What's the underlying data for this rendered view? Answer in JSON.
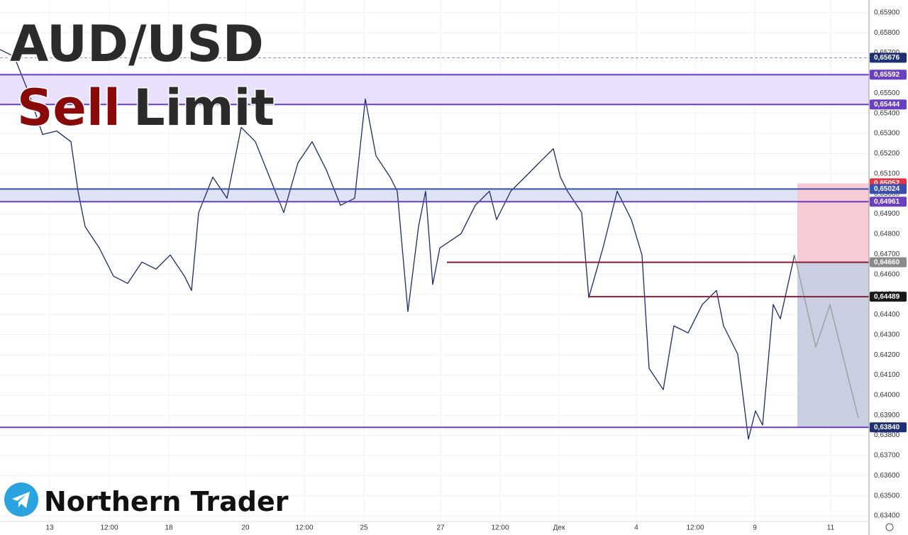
{
  "chart_data": {
    "type": "line",
    "title": "AUD/USD",
    "subtitle_parts": [
      "Sell",
      "Limit"
    ],
    "brand": "Northern Trader",
    "xlim": [
      0,
      122.5
    ],
    "ylim": [
      0.63372,
      0.65963
    ],
    "xticks": [
      {
        "value": 7,
        "label": "13"
      },
      {
        "value": 15.4,
        "label": "12:00"
      },
      {
        "value": 23.8,
        "label": "18"
      },
      {
        "value": 34.6,
        "label": "20"
      },
      {
        "value": 42.9,
        "label": "12:00"
      },
      {
        "value": 51.3,
        "label": "25"
      },
      {
        "value": 62.1,
        "label": "27"
      },
      {
        "value": 70.5,
        "label": "12:00"
      },
      {
        "value": 78.8,
        "label": "Дек"
      },
      {
        "value": 89.7,
        "label": "4"
      },
      {
        "value": 98,
        "label": "12:00"
      },
      {
        "value": 106.4,
        "label": "9"
      },
      {
        "value": 117.1,
        "label": "11"
      }
    ],
    "yticks": [
      {
        "value": 0.634,
        "label": "0,63400"
      },
      {
        "value": 0.635,
        "label": "0,63500"
      },
      {
        "value": 0.636,
        "label": "0,63600"
      },
      {
        "value": 0.637,
        "label": "0,63700"
      },
      {
        "value": 0.638,
        "label": "0,63800"
      },
      {
        "value": 0.639,
        "label": "0,63900"
      },
      {
        "value": 0.64,
        "label": "0,64000"
      },
      {
        "value": 0.641,
        "label": "0,64100"
      },
      {
        "value": 0.642,
        "label": "0,64200"
      },
      {
        "value": 0.643,
        "label": "0,64300"
      },
      {
        "value": 0.644,
        "label": "0,64400"
      },
      {
        "value": 0.645,
        "label": "0,64500"
      },
      {
        "value": 0.646,
        "label": "0,64600"
      },
      {
        "value": 0.647,
        "label": "0,64700"
      },
      {
        "value": 0.648,
        "label": "0,64800"
      },
      {
        "value": 0.649,
        "label": "0,64900"
      },
      {
        "value": 0.65,
        "label": "0,65000"
      },
      {
        "value": 0.651,
        "label": "0,65100"
      },
      {
        "value": 0.652,
        "label": "0,65200"
      },
      {
        "value": 0.653,
        "label": "0,65300"
      },
      {
        "value": 0.654,
        "label": "0,65400"
      },
      {
        "value": 0.655,
        "label": "0,65500"
      },
      {
        "value": 0.656,
        "label": "0,65600"
      },
      {
        "value": 0.657,
        "label": "0,65700"
      },
      {
        "value": 0.658,
        "label": "0,65800"
      },
      {
        "value": 0.659,
        "label": "0,65900"
      }
    ],
    "grid": true,
    "series": [
      {
        "color": "#1b2a6b",
        "x": [
          0,
          2,
          4,
          6,
          8,
          10,
          11,
          12,
          14,
          16,
          18,
          20,
          22,
          24,
          26,
          27,
          28,
          30,
          32,
          34,
          36,
          38,
          40,
          42,
          44,
          46,
          48,
          50,
          51.5,
          53,
          55,
          56,
          57.5,
          59,
          60,
          61,
          62,
          65,
          67,
          69,
          70,
          72,
          74,
          76,
          78,
          79,
          80,
          82,
          83,
          85,
          87,
          89,
          90.5,
          91.5,
          93.5,
          95,
          97,
          99,
          101,
          102,
          104,
          105.5,
          106.5,
          107.5,
          109,
          110,
          112
        ],
        "values": [
          0.65717,
          0.65682,
          0.65506,
          0.65295,
          0.65312,
          0.65259,
          0.65013,
          0.64837,
          0.64731,
          0.64591,
          0.64555,
          0.64661,
          0.64626,
          0.64696,
          0.64591,
          0.6452,
          0.64907,
          0.65083,
          0.64978,
          0.6533,
          0.65259,
          0.65083,
          0.64907,
          0.65154,
          0.65259,
          0.65119,
          0.64943,
          0.64978,
          0.65471,
          0.65189,
          0.65083,
          0.65013,
          0.64415,
          0.64837,
          0.65013,
          0.6455,
          0.64731,
          0.64802,
          0.64943,
          0.65013,
          0.64872,
          0.65013,
          0.65083,
          0.65154,
          0.65224,
          0.65083,
          0.65013,
          0.64907,
          0.64485,
          0.64731,
          0.65013,
          0.64872,
          0.64696,
          0.64133,
          0.64027,
          0.64344,
          0.64309,
          0.6445,
          0.6452,
          0.64344,
          0.64203,
          0.63781,
          0.63922,
          0.63851,
          0.6445,
          0.64379,
          0.64696
        ]
      },
      {
        "color": "#9a9a9a",
        "x": [
          112,
          115,
          117,
          121
        ],
        "values": [
          0.64696,
          0.64239,
          0.6445,
          0.63887
        ]
      }
    ],
    "zones": [
      {
        "from": 0.65592,
        "to": 0.65444,
        "color": "#e9e1fb"
      },
      {
        "from": 0.65024,
        "to": 0.64961,
        "color": "#dfe3f6"
      }
    ],
    "boxes": [
      {
        "x0": 112.4,
        "from": 0.65052,
        "to": 0.6466,
        "color": "#f7cbd3"
      },
      {
        "x0": 112.4,
        "from": 0.6466,
        "to": 0.6384,
        "color": "#c9cfe0"
      }
    ],
    "levels": [
      {
        "value": 0.65676,
        "label": "0,65676",
        "line": "#7b8bb0",
        "style": "dashed",
        "tag": "#1e2f74"
      },
      {
        "value": 0.65592,
        "label": "0,65592",
        "line": "#6a3fc1",
        "tag": "#6a3fc1"
      },
      {
        "value": 0.65444,
        "label": "0,65444",
        "line": "#6a3fc1",
        "tag": "#6a3fc1"
      },
      {
        "value": 0.65052,
        "label": "0,65052",
        "tag": "#e8333f"
      },
      {
        "value": 0.65024,
        "label": "0,65024",
        "line": "#3a4db0",
        "tag": "#3a4db0"
      },
      {
        "value": 0.64961,
        "label": "0,64961",
        "line": "#6a3fc1",
        "tag": "#6a3fc1"
      },
      {
        "value": 0.6466,
        "label": "0,64660",
        "line": "#8a1c3a",
        "x0": 63,
        "tag": "#8a8a8a"
      },
      {
        "value": 0.64489,
        "label": "0,64489",
        "line": "#8a1c3a",
        "x0": 83,
        "tag": "#1a1a1a"
      },
      {
        "value": 0.6384,
        "label": "0,63840",
        "line": "#6a3fc1",
        "tag": "#1e2f74"
      }
    ]
  }
}
